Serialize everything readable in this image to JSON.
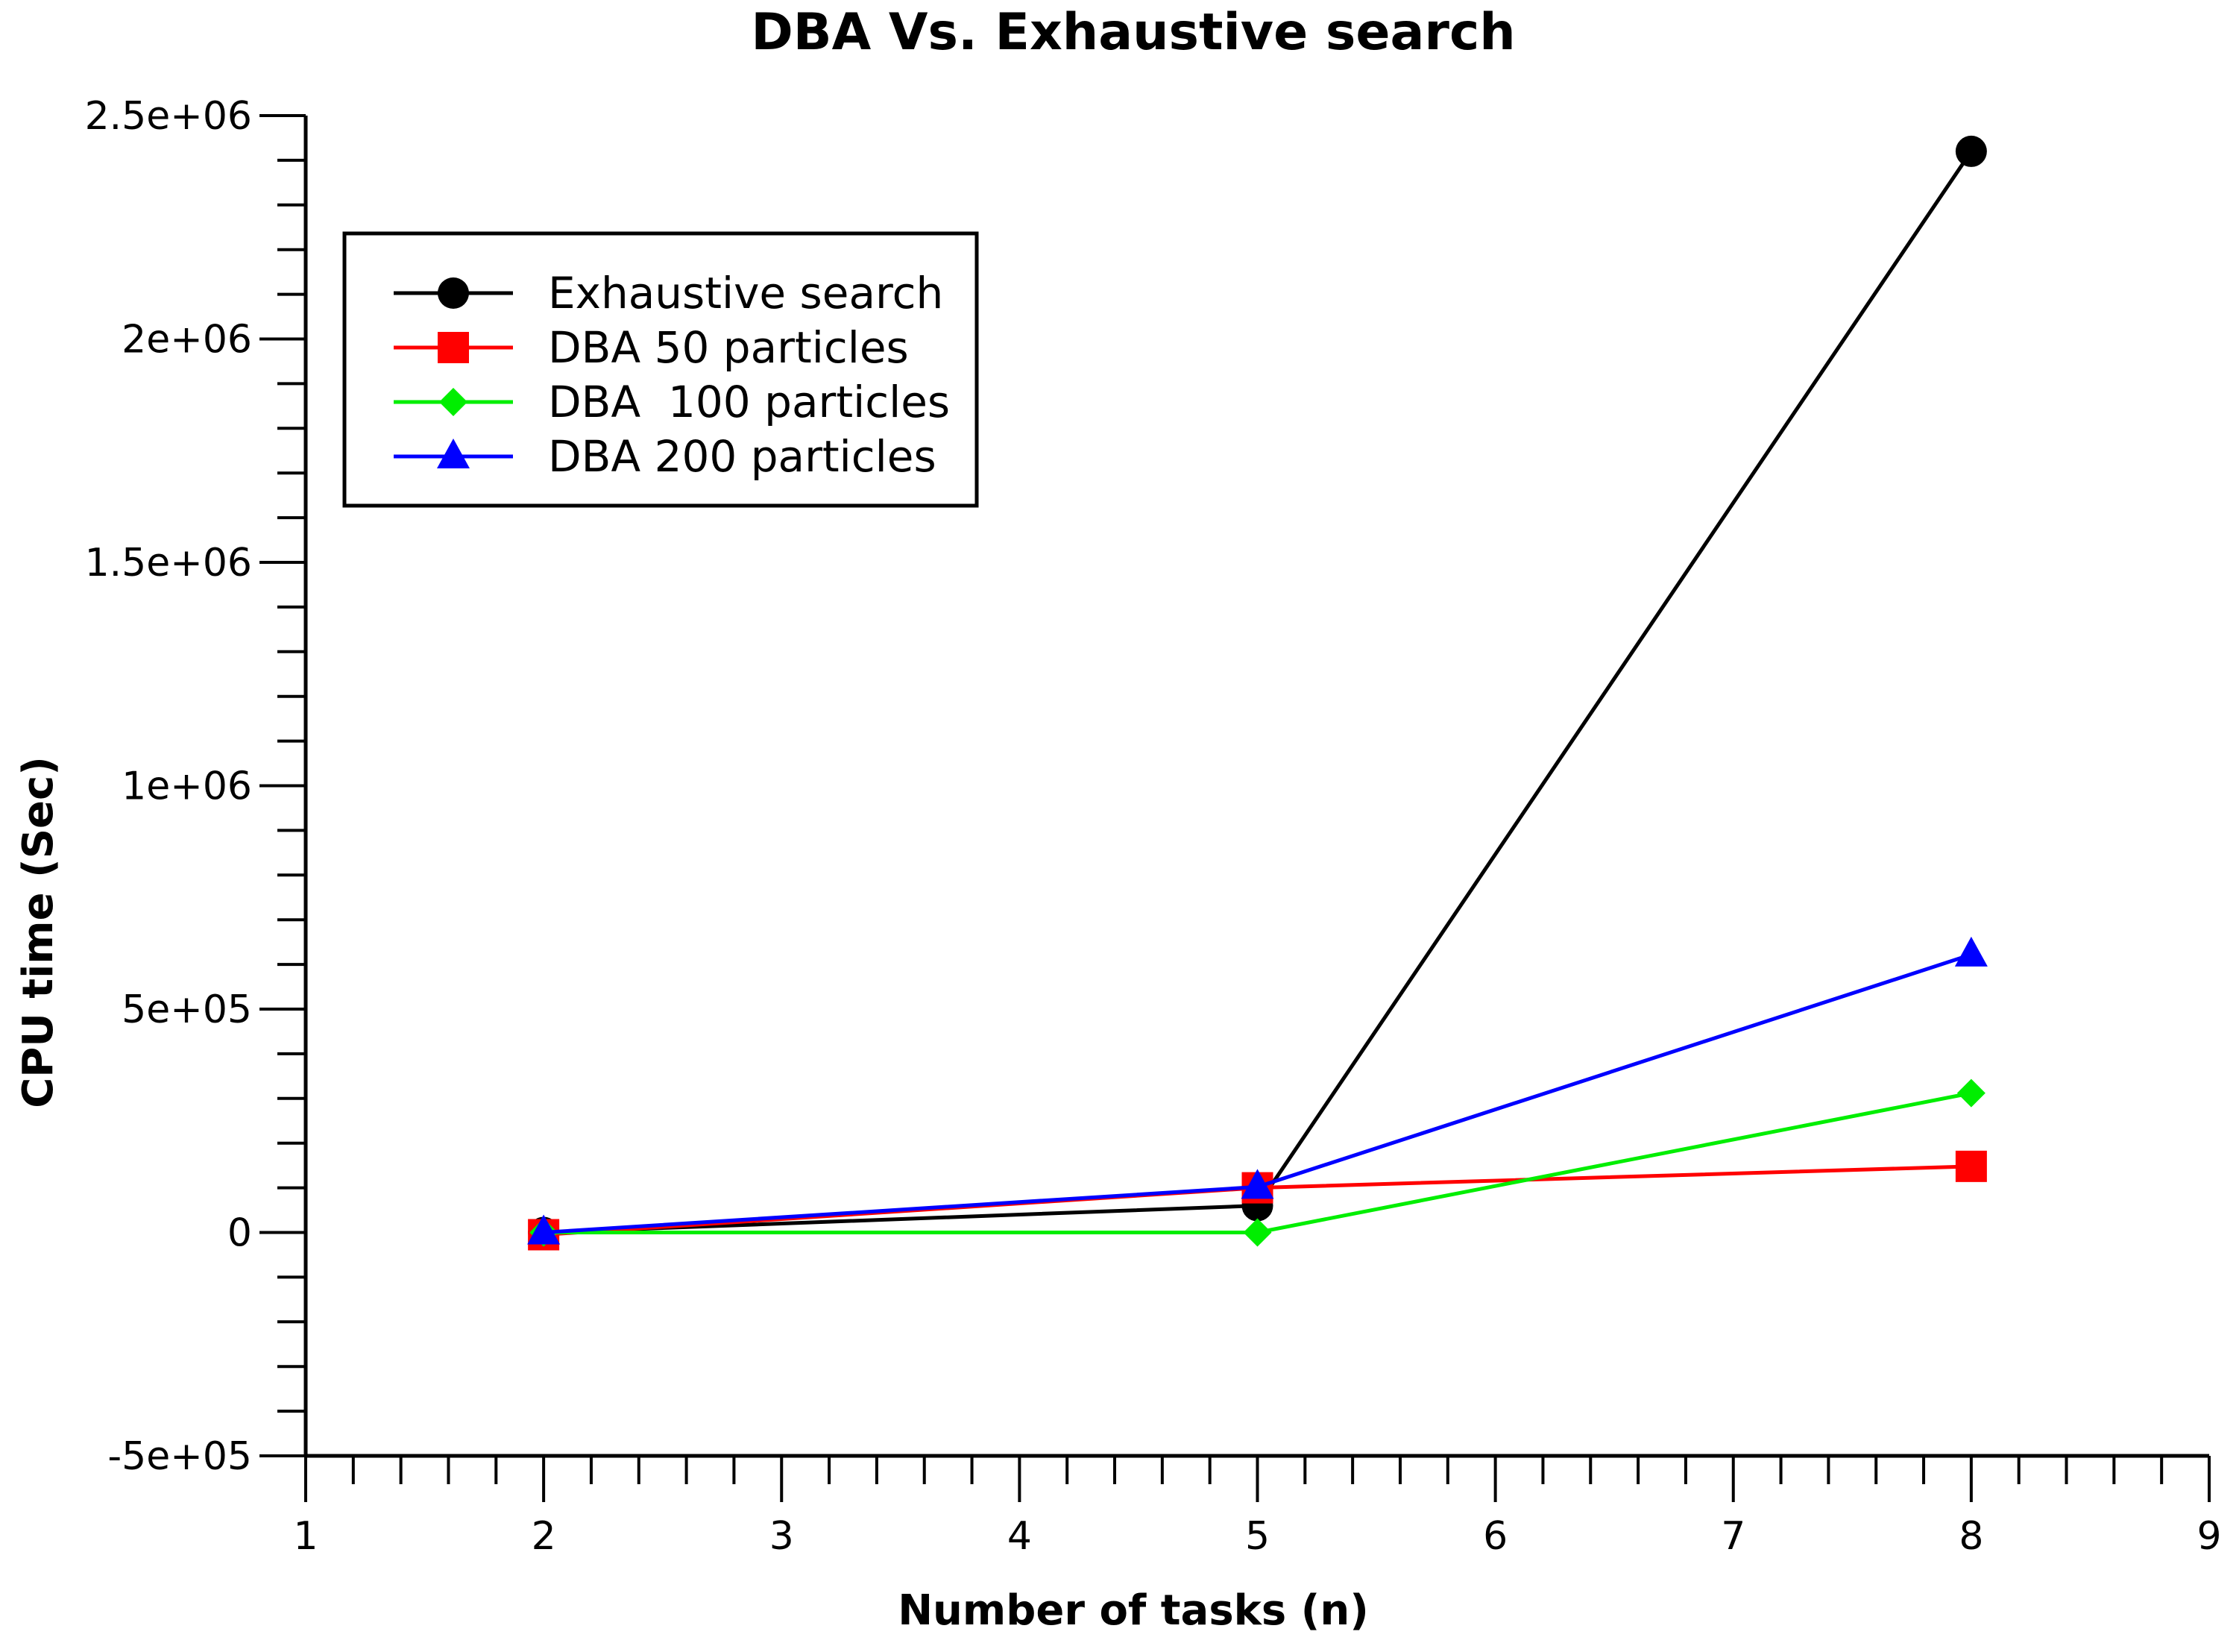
{
  "chart_data": {
    "type": "line",
    "title": "DBA Vs. Exhaustive search",
    "xlabel": "Number of tasks (n)",
    "ylabel": "CPU time (Sec)",
    "xlim": [
      1,
      9
    ],
    "ylim": [
      -500000,
      2500000
    ],
    "x_ticks": [
      1,
      2,
      3,
      4,
      5,
      6,
      7,
      8,
      9
    ],
    "x_tick_labels": [
      "1",
      "2",
      "3",
      "4",
      "5",
      "6",
      "7",
      "8",
      "9"
    ],
    "y_ticks": [
      -500000,
      0,
      500000,
      1000000,
      1500000,
      2000000,
      2500000
    ],
    "y_tick_labels": [
      "-5e+05",
      "0",
      "5e+05",
      "1e+06",
      "1.5e+06",
      "2e+06",
      "2.5e+06"
    ],
    "x_minor_step": 0.2,
    "y_minor_step": 100000,
    "grid": false,
    "legend_position": "top-left",
    "x": [
      2,
      5,
      8
    ],
    "series": [
      {
        "name": "Exhaustive search",
        "values": [
          0,
          60000,
          2420000
        ],
        "color": "#000000",
        "marker": "circle"
      },
      {
        "name": "DBA 50 particles",
        "values": [
          -5000,
          100000,
          148000
        ],
        "color": "#ff0000",
        "marker": "square"
      },
      {
        "name": "DBA  100 particles",
        "values": [
          0,
          0,
          312000
        ],
        "color": "#00ee00",
        "marker": "diamond"
      },
      {
        "name": "DBA 200 particles",
        "values": [
          0,
          102000,
          622000
        ],
        "color": "#0000ff",
        "marker": "triangle"
      }
    ]
  }
}
